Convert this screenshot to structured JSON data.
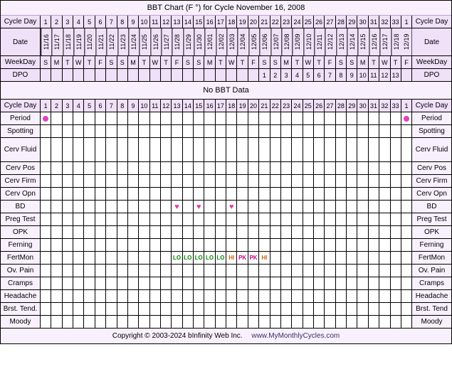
{
  "title": "BBT Chart (F °) for Cycle November 16, 2008",
  "no_bbt_text": "No BBT Data",
  "footer": {
    "copyright": "Copyright © 2003-2024 bInfinity Web Inc.",
    "link": "www.MyMonthlyCycles.com"
  },
  "colors": {
    "bg": "#f8f0fc",
    "header_bg": "#f0e0f8",
    "border": "#000000",
    "period": "#e040c0",
    "heart": "#e6399b",
    "fm_lo": "#008800",
    "fm_hi": "#cc6600",
    "fm_pk": "#cc0088"
  },
  "labels": {
    "cycle_day": "Cycle Day",
    "date": "Date",
    "weekday": "WeekDay",
    "dpo": "DPO",
    "period": "Period",
    "spotting": "Spotting",
    "cerv_fluid": "Cerv Fluid",
    "cerv_pos": "Cerv Pos",
    "cerv_firm": "Cerv Firm",
    "cerv_opn": "Cerv Opn",
    "bd": "BD",
    "preg_test": "Preg Test",
    "opk": "OPK",
    "ferning": "Ferning",
    "fertmon": "FertMon",
    "ov_pain": "Ov. Pain",
    "cramps": "Cramps",
    "headache": "Headache",
    "brst_tend_l": "Brst. Tend.",
    "brst_tend_r": "Brst. Tend",
    "moody": "Moody"
  },
  "cycle_days_1": [
    "1",
    "2",
    "3",
    "4",
    "5",
    "6",
    "7",
    "8",
    "9",
    "10",
    "11",
    "12",
    "13",
    "14",
    "15",
    "16",
    "17",
    "18",
    "19",
    "20",
    "21",
    "22",
    "23",
    "24",
    "25",
    "26",
    "27",
    "28",
    "29",
    "30",
    "31",
    "32",
    "33",
    "1"
  ],
  "dates": [
    "11/16",
    "11/17",
    "11/18",
    "11/19",
    "11/20",
    "11/21",
    "11/22",
    "11/23",
    "11/24",
    "11/25",
    "11/26",
    "11/27",
    "11/28",
    "11/29",
    "11/30",
    "12/01",
    "12/02",
    "12/03",
    "12/04",
    "12/05",
    "12/06",
    "12/07",
    "12/08",
    "12/09",
    "12/10",
    "12/11",
    "12/12",
    "12/13",
    "12/14",
    "12/15",
    "12/16",
    "12/17",
    "12/18",
    "12/19"
  ],
  "weekdays": [
    "S",
    "M",
    "T",
    "W",
    "T",
    "F",
    "S",
    "S",
    "M",
    "T",
    "W",
    "T",
    "F",
    "S",
    "S",
    "M",
    "T",
    "W",
    "T",
    "F",
    "S",
    "S",
    "M",
    "T",
    "W",
    "T",
    "F",
    "S",
    "S",
    "M",
    "T",
    "W",
    "T",
    "F"
  ],
  "dpo": [
    "",
    "",
    "",
    "",
    "",
    "",
    "",
    "",
    "",
    "",
    "",
    "",
    "",
    "",
    "",
    "",
    "",
    "",
    "",
    "",
    "1",
    "2",
    "3",
    "4",
    "5",
    "6",
    "7",
    "8",
    "9",
    "10",
    "11",
    "12",
    "13",
    ""
  ],
  "cycle_days_2": [
    "1",
    "2",
    "3",
    "4",
    "5",
    "6",
    "7",
    "8",
    "9",
    "10",
    "11",
    "12",
    "13",
    "14",
    "15",
    "16",
    "17",
    "18",
    "19",
    "20",
    "21",
    "22",
    "23",
    "24",
    "25",
    "26",
    "27",
    "28",
    "29",
    "30",
    "31",
    "32",
    "33",
    "1"
  ],
  "period": {
    "0": "dot",
    "33": "dot"
  },
  "bd": {
    "12": "heart",
    "14": "heart",
    "17": "heart"
  },
  "fertmon": {
    "12": "LO",
    "13": "LO",
    "14": "LO",
    "15": "LO",
    "16": "LO",
    "17": "HI",
    "18": "PK",
    "19": "PK",
    "20": "HI"
  },
  "empty_rows": [
    "spotting",
    "cerv_fluid",
    "cerv_pos",
    "cerv_firm",
    "cerv_opn",
    "preg_test",
    "opk",
    "ferning",
    "ov_pain",
    "cramps",
    "headache",
    "brst_tend",
    "moody"
  ]
}
